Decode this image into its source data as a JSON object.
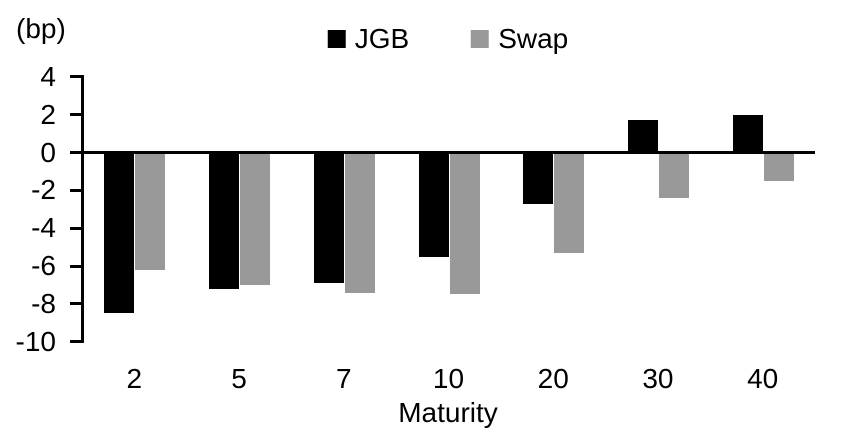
{
  "chart_data": {
    "type": "bar",
    "title": "",
    "unit_label": "(bp)",
    "xlabel": "Maturity",
    "ylabel": "",
    "categories": [
      "2",
      "5",
      "7",
      "10",
      "20",
      "30",
      "40"
    ],
    "series": [
      {
        "name": "JGB",
        "color": "#000000",
        "values": [
          -8.5,
          -7.2,
          -6.9,
          -5.5,
          -2.7,
          1.7,
          2.0
        ]
      },
      {
        "name": "Swap",
        "color": "#999999",
        "values": [
          -6.2,
          -7.0,
          -7.4,
          -7.5,
          -5.3,
          -2.4,
          -1.5
        ]
      }
    ],
    "ylim": [
      -10,
      4
    ],
    "yticks": [
      4,
      2,
      0,
      -2,
      -4,
      -6,
      -8,
      -10
    ],
    "legend_position": "top-center",
    "grid": false,
    "axis_color": "#000000",
    "background_color": "#ffffff"
  }
}
